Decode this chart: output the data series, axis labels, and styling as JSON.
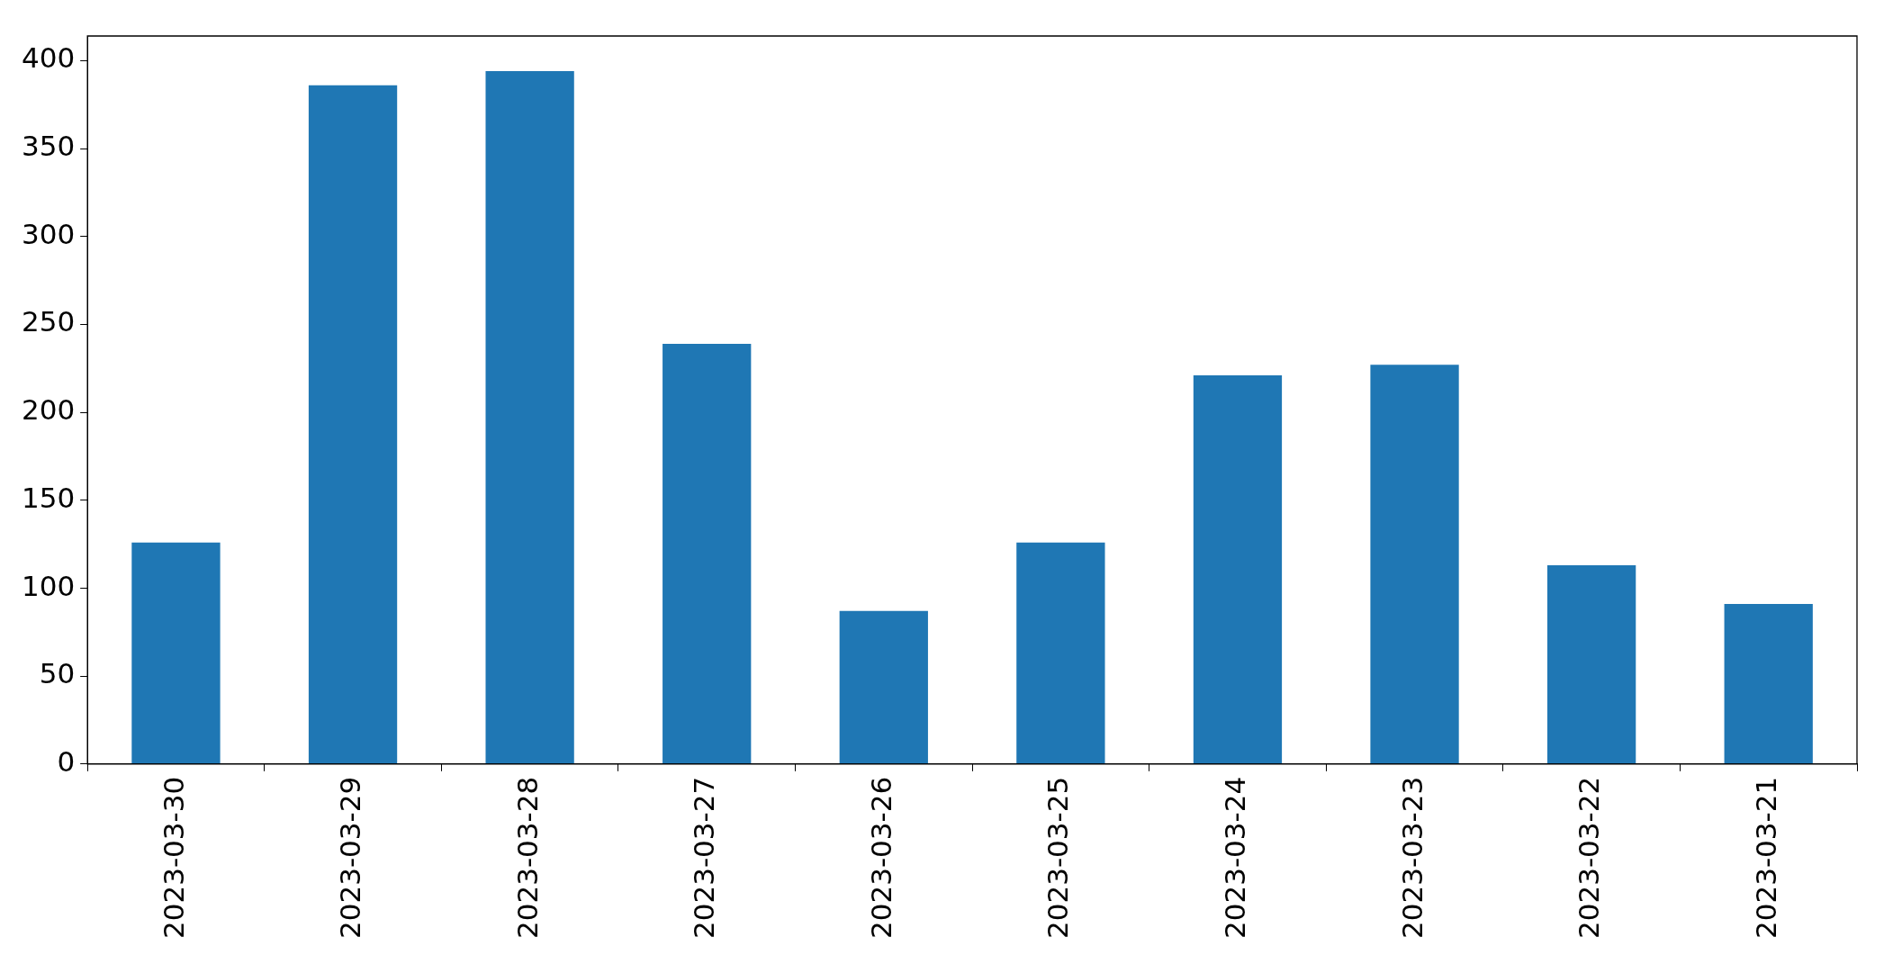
{
  "chart_data": {
    "type": "bar",
    "categories": [
      "2023-03-30",
      "2023-03-29",
      "2023-03-28",
      "2023-03-27",
      "2023-03-26",
      "2023-03-25",
      "2023-03-24",
      "2023-03-23",
      "2023-03-22",
      "2023-03-21"
    ],
    "values": [
      126,
      386,
      394,
      239,
      87,
      126,
      221,
      227,
      113,
      91
    ],
    "color": "#1f77b4",
    "ylim": [
      0,
      414
    ],
    "yticks": [
      0,
      50,
      100,
      150,
      200,
      250,
      300,
      350,
      400
    ],
    "grid": false,
    "legend": false
  }
}
